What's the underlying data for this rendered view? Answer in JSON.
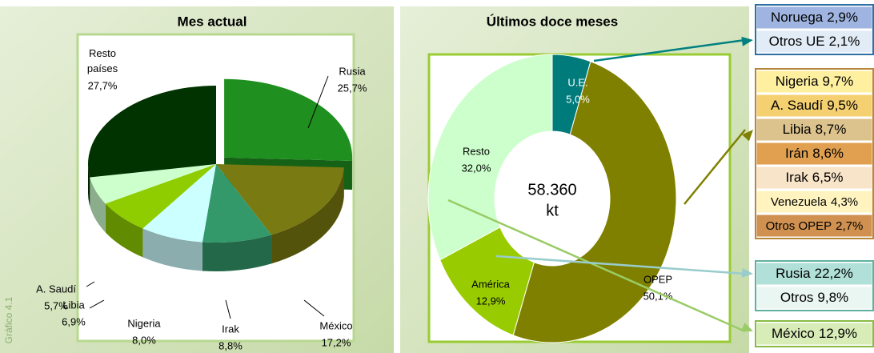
{
  "side_label": "Gráfico 4.1",
  "chart_data": [
    {
      "type": "pie",
      "title": "Mes actual",
      "categories": [
        "Rusia",
        "México",
        "Irak",
        "Nigeria",
        "Libia",
        "A. Saudí",
        "Resto países"
      ],
      "values": [
        25.7,
        17.2,
        8.8,
        8.0,
        6.9,
        5.7,
        27.7
      ],
      "value_labels": [
        "25,7%",
        "17,2%",
        "8,8%",
        "8,0%",
        "6,9%",
        "5,7%",
        "27,7%"
      ],
      "colors": [
        "#1f8f1f",
        "#7a7a12",
        "#33996a",
        "#ccffff",
        "#8fcc00",
        "#ccffcc",
        "#003300"
      ]
    },
    {
      "type": "donut",
      "title": "Últimos doce meses",
      "categories": [
        "U.E.",
        "OPEP",
        "América",
        "Resto"
      ],
      "values": [
        5.0,
        50.1,
        12.9,
        32.0
      ],
      "value_labels": [
        "5,0%",
        "50,1%",
        "12,9%",
        "32,0%"
      ],
      "colors": [
        "#007b7b",
        "#808000",
        "#99cc00",
        "#ccffcc"
      ],
      "center_label": "58.360",
      "center_unit": "kt",
      "breakdown": [
        {
          "border_color": "#2f6fa3",
          "items": [
            {
              "name": "Noruega",
              "value": 2.9,
              "value_label": "2,9%",
              "color": "#9fb4e0"
            },
            {
              "name": "Otros UE",
              "value": 2.1,
              "value_label": "2,1%",
              "color": "#e2ecf6"
            }
          ]
        },
        {
          "border_color": "#b8863a",
          "items": [
            {
              "name": "Nigeria",
              "value": 9.7,
              "value_label": "9,7%",
              "color": "#fff0a0"
            },
            {
              "name": "A. Saudí",
              "value": 9.5,
              "value_label": "9,5%",
              "color": "#f4d070"
            },
            {
              "name": "Libia",
              "value": 8.7,
              "value_label": "8,7%",
              "color": "#dcc28c"
            },
            {
              "name": "Irán",
              "value": 8.6,
              "value_label": "8,6%",
              "color": "#e0a050"
            },
            {
              "name": "Irak",
              "value": 6.5,
              "value_label": "6,5%",
              "color": "#f8e4c8"
            },
            {
              "name": "Venezuela",
              "value": 4.3,
              "value_label": "4,3%",
              "color": "#fff4c0"
            },
            {
              "name": "Otros OPEP",
              "value": 2.7,
              "value_label": "2,7%",
              "color": "#d09050"
            }
          ]
        },
        {
          "border_color": "#88bb44",
          "items": [
            {
              "name": "México",
              "value": 12.9,
              "value_label": "12,9%",
              "color": "#d8ecb8"
            }
          ]
        },
        {
          "border_color": "#60b0a0",
          "items": [
            {
              "name": "Rusia",
              "value": 22.2,
              "value_label": "22,2%",
              "color": "#b0e0d8"
            },
            {
              "name": "Otros",
              "value": 9.8,
              "value_label": "9,8%",
              "color": "#eaf6f2"
            }
          ]
        }
      ]
    }
  ]
}
